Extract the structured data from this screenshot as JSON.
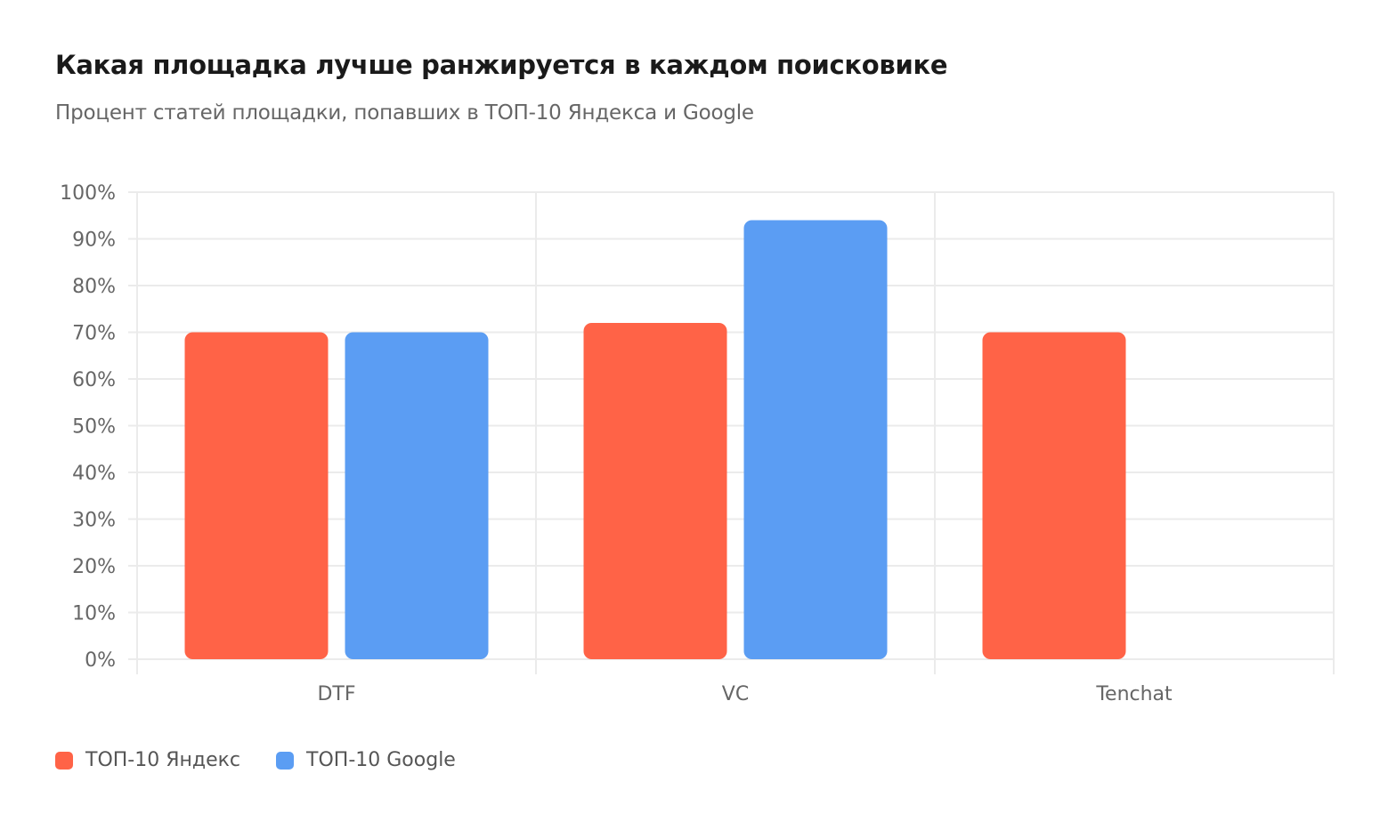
{
  "chart_data": {
    "type": "bar",
    "title": "Какая площадка лучше ранжируется в каждом поисковике",
    "subtitle": "Процент статей площадки, попавших в ТОП-10 Яндекса и Google",
    "categories": [
      "DTF",
      "VC",
      "Tenchat"
    ],
    "series": [
      {
        "name": "ТОП-10 Яндекс",
        "values": [
          70,
          72,
          70
        ],
        "color": "#FF6347"
      },
      {
        "name": "ТОП-10 Google",
        "values": [
          70,
          94,
          0
        ],
        "color": "#5B9DF3"
      }
    ],
    "ylim": [
      0,
      100
    ],
    "yticks": [
      "0%",
      "10%",
      "20%",
      "30%",
      "40%",
      "50%",
      "60%",
      "70%",
      "80%",
      "90%",
      "100%"
    ],
    "xlabel": "",
    "ylabel": "",
    "grid": true,
    "legend": "bottom-left"
  }
}
